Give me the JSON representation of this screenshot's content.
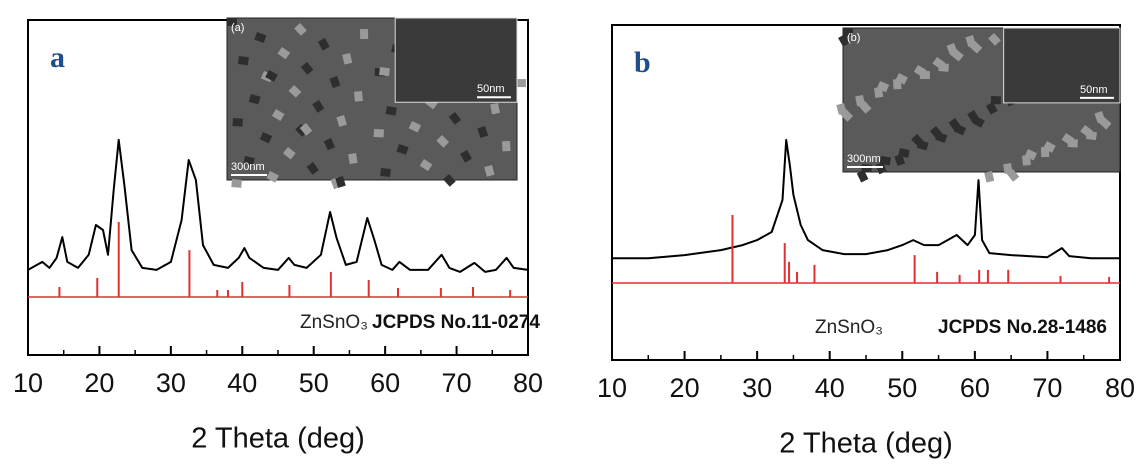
{
  "chart_data": [
    {
      "type": "line",
      "panel_label": "a",
      "xlabel": "2 Theta (deg)",
      "xlim": [
        10,
        80
      ],
      "ylim": [
        0,
        100
      ],
      "xticks": [
        10,
        20,
        30,
        40,
        50,
        60,
        70,
        80
      ],
      "annotations": [
        "ZnSnO₃",
        "JCPDS No.11-0274"
      ],
      "inset": {
        "label": "(a)",
        "scale_bars": [
          "300nm",
          "50nm"
        ]
      },
      "series": [
        {
          "style": "line",
          "color": "#000000",
          "x": [
            10,
            12,
            13,
            14,
            14.8,
            15.5,
            17,
            18.5,
            19.5,
            20.5,
            21.2,
            22,
            22.7,
            23.5,
            24.5,
            26,
            28,
            30,
            31.5,
            32.5,
            33.5,
            34.5,
            36,
            38,
            39.5,
            40.3,
            41,
            43,
            45,
            46.5,
            47.3,
            49,
            51,
            52.3,
            53.2,
            54.5,
            56,
            57.5,
            58.5,
            59.5,
            61,
            62,
            63.5,
            66,
            67.9,
            69,
            70.5,
            72.5,
            74,
            75.5,
            77,
            78,
            80
          ],
          "values": [
            25.4,
            27.8,
            26.0,
            29.0,
            35.2,
            27.8,
            26.0,
            29.9,
            38.8,
            37.3,
            29.9,
            49.3,
            64.2,
            50.7,
            31.3,
            26.0,
            25.4,
            27.8,
            40.3,
            58.2,
            52.2,
            32.8,
            26.9,
            26.0,
            29.0,
            31.9,
            29.0,
            26.0,
            25.4,
            29.0,
            26.9,
            26.0,
            29.9,
            42.7,
            34.9,
            26.9,
            27.8,
            40.9,
            34.3,
            26.9,
            25.4,
            27.8,
            25.4,
            25.4,
            29.9,
            26.0,
            24.8,
            27.5,
            24.8,
            25.4,
            29.0,
            26.0,
            25.4
          ]
        },
        {
          "style": "stick",
          "color": "#e03030",
          "base": 17.3,
          "x": [
            14.4,
            19.7,
            22.7,
            32.6,
            36.5,
            38.0,
            40.0,
            46.6,
            52.4,
            57.7,
            61.8,
            67.8,
            72.3,
            77.5
          ],
          "values": [
            20.3,
            23.0,
            39.7,
            31.3,
            19.4,
            19.4,
            21.8,
            20.9,
            24.8,
            22.4,
            20.0,
            20.0,
            20.3,
            19.4
          ]
        }
      ]
    },
    {
      "type": "line",
      "panel_label": "b",
      "xlabel": "2 Theta (deg)",
      "xlim": [
        10,
        80
      ],
      "ylim": [
        0,
        100
      ],
      "xticks": [
        10,
        20,
        30,
        40,
        50,
        60,
        70,
        80
      ],
      "annotations": [
        "ZnSnO₃",
        "JCPDS No.28-1486"
      ],
      "inset": {
        "label": "(b)",
        "scale_bars": [
          "300nm",
          "50nm"
        ]
      },
      "series": [
        {
          "style": "line",
          "color": "#000000",
          "x": [
            10,
            15,
            20,
            25,
            28,
            30,
            32,
            33.5,
            34,
            34.5,
            35,
            36,
            37,
            39,
            42,
            45,
            48,
            50,
            51.5,
            53,
            55,
            57.5,
            59,
            60,
            60.5,
            61,
            62,
            65,
            70,
            72,
            73,
            76,
            80
          ],
          "values": [
            30.4,
            30.4,
            31.3,
            32.8,
            34.3,
            35.8,
            38.2,
            47.8,
            65.7,
            58.2,
            49.3,
            40.3,
            35.8,
            32.8,
            31.6,
            31.6,
            32.8,
            34.3,
            35.8,
            34.3,
            34.3,
            37.3,
            34.3,
            37.3,
            53.7,
            35.8,
            31.9,
            31.3,
            30.7,
            33.4,
            31.0,
            30.4,
            30.4
          ]
        },
        {
          "style": "stick",
          "color": "#e03030",
          "base": 23.0,
          "x": [
            26.6,
            33.8,
            34.4,
            35.5,
            37.9,
            51.7,
            54.8,
            57.9,
            60.6,
            61.8,
            64.6,
            71.8,
            78.5
          ],
          "values": [
            43.3,
            34.9,
            29.3,
            26.3,
            28.4,
            31.3,
            26.3,
            25.4,
            26.9,
            26.9,
            26.9,
            25.1,
            24.8
          ]
        }
      ]
    }
  ]
}
